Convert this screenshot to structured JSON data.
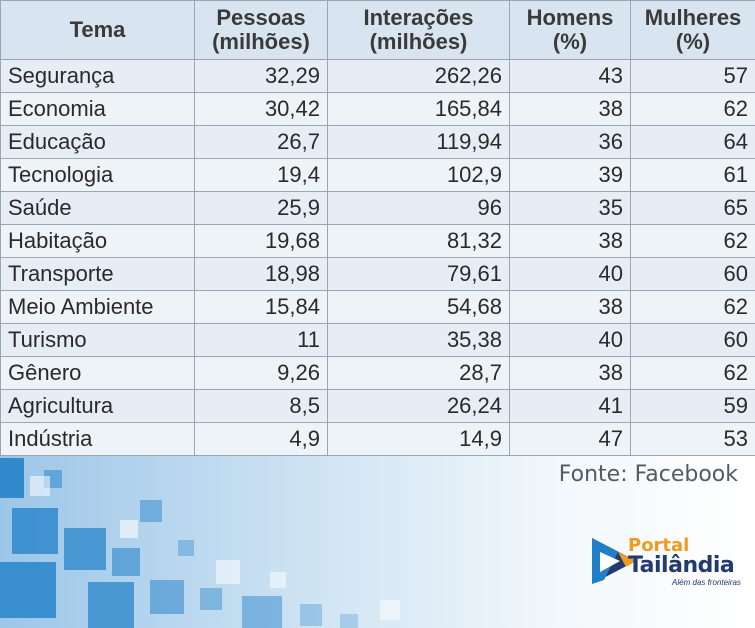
{
  "chart_data": {
    "type": "table",
    "columns": [
      {
        "key": "tema",
        "line1": "Tema",
        "line2": ""
      },
      {
        "key": "pessoas",
        "line1": "Pessoas",
        "line2": "(milhões)"
      },
      {
        "key": "interacoes",
        "line1": "Interações",
        "line2": "(milhões)"
      },
      {
        "key": "homens",
        "line1": "Homens",
        "line2": "(%)"
      },
      {
        "key": "mulheres",
        "line1": "Mulheres",
        "line2": "(%)"
      }
    ],
    "rows": [
      [
        "Segurança",
        "32,29",
        "262,26",
        "43",
        "57"
      ],
      [
        "Economia",
        "30,42",
        "165,84",
        "38",
        "62"
      ],
      [
        "Educação",
        "26,7",
        "119,94",
        "36",
        "64"
      ],
      [
        "Tecnologia",
        "19,4",
        "102,9",
        "39",
        "61"
      ],
      [
        "Saúde",
        "25,9",
        "96",
        "35",
        "65"
      ],
      [
        "Habitação",
        "19,68",
        "81,32",
        "38",
        "62"
      ],
      [
        "Transporte",
        "18,98",
        "79,61",
        "40",
        "60"
      ],
      [
        "Meio Ambiente",
        "15,84",
        "54,68",
        "38",
        "62"
      ],
      [
        "Turismo",
        "11",
        "35,38",
        "40",
        "60"
      ],
      [
        "Gênero",
        "9,26",
        "28,7",
        "38",
        "62"
      ],
      [
        "Agricultura",
        "8,5",
        "26,24",
        "41",
        "59"
      ],
      [
        "Indústria",
        "4,9",
        "14,9",
        "47",
        "53"
      ]
    ]
  },
  "source": "Fonte: Facebook",
  "logo": {
    "portal": "Portal",
    "name": "Tailândia",
    "slogan": "Além das fronteiras"
  },
  "colors": {
    "header_bg": "#d8e4ef",
    "row_odd": "#e6edf5",
    "row_even": "#eef3f8",
    "border": "#9aa6b2",
    "logo_orange": "#f29a1f",
    "logo_blue": "#233a6e"
  }
}
